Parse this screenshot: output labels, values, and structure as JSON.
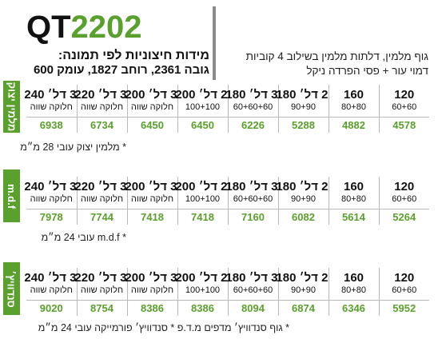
{
  "title": {
    "prefix": "QT",
    "number": "2202"
  },
  "dimensions": {
    "heading": "מידות חיצוניות לפי תמונה:",
    "values": "גובה 2361, רוחב 1827, עומק 600"
  },
  "description": {
    "line1": "גוף מלמין, דלתות מלמין בשילוב 4 קוביות",
    "line2": "דמוי עור + פסי הפרדה ניקל"
  },
  "columns": [
    {
      "size": "120",
      "sub": "60+60"
    },
    {
      "size": "160",
      "sub": "80+80"
    },
    {
      "size": "2 דל׳ 180",
      "sub": "90+90"
    },
    {
      "size": "3 דל׳ 180",
      "sub": "60+60+60"
    },
    {
      "size": "2 דל׳ 200",
      "sub": "100+100"
    },
    {
      "size": "3 דל׳ 200",
      "sub": "חלוקה שווה"
    },
    {
      "size": "3 דל׳ 220",
      "sub": "חלוקה שווה"
    },
    {
      "size": "3 דל׳ 240",
      "sub": "חלוקה שווה"
    }
  ],
  "sections": [
    {
      "label": "מלמין יצוק",
      "prices": [
        "4578",
        "4882",
        "5288",
        "6226",
        "6450",
        "6450",
        "6734",
        "6938"
      ],
      "note": "* מלמין יצוק עובי 28 מ״מ"
    },
    {
      "label": "m.d.f",
      "prices": [
        "5264",
        "5614",
        "6082",
        "7160",
        "7418",
        "7418",
        "7744",
        "7978"
      ],
      "note": "* m.d.f עובי 24 מ״מ"
    },
    {
      "label": "סנדוויץ׳",
      "prices": [
        "5952",
        "6346",
        "6874",
        "8094",
        "8386",
        "8386",
        "8754",
        "9020"
      ],
      "note": "* גוף סנדוויץ׳ מדפים מ.ד.פ * סנדוויץ׳ פורמייקה עובי 24 מ״מ"
    }
  ],
  "colors": {
    "accent": "#5aa02c",
    "divider": "#8a8a8a",
    "grid": "#b9b9b9"
  }
}
